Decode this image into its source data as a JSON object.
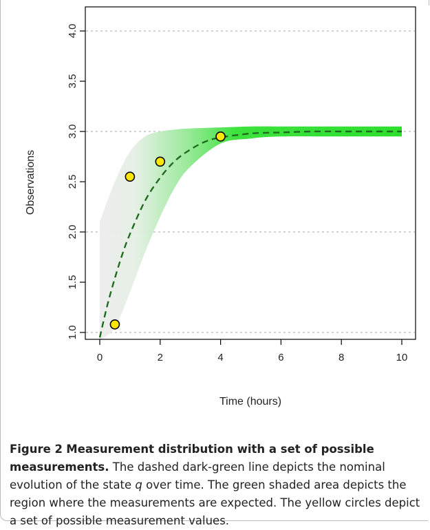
{
  "chart_data": {
    "type": "line",
    "xlabel": "Time (hours)",
    "ylabel": "Observations",
    "xlim": [
      0,
      10
    ],
    "ylim": [
      1.0,
      4.0
    ],
    "x_ticks": [
      "0",
      "2",
      "4",
      "6",
      "8",
      "10"
    ],
    "y_ticks": [
      "1.0",
      "1.5",
      "2.0",
      "2.5",
      "3.0",
      "3.5",
      "4.0"
    ],
    "grid": "horizontal dotted",
    "nominal_curve": {
      "style": "dashed dark-green",
      "color": "#1f6b1f",
      "x": [
        0,
        0.25,
        0.5,
        0.75,
        1,
        1.5,
        2,
        2.5,
        3,
        3.5,
        4,
        5,
        6,
        7,
        8,
        9,
        10
      ],
      "y": [
        0.95,
        1.27,
        1.54,
        1.78,
        1.98,
        2.31,
        2.54,
        2.71,
        2.82,
        2.9,
        2.94,
        2.98,
        2.99,
        3.0,
        3.0,
        3.0,
        3.0
      ]
    },
    "expected_region": {
      "color": "#22e022",
      "x": [
        0,
        0.5,
        1,
        1.5,
        2,
        2.5,
        3,
        4,
        5,
        6,
        8,
        10
      ],
      "lower": [
        0.92,
        1.05,
        1.4,
        1.8,
        2.15,
        2.45,
        2.65,
        2.88,
        2.93,
        2.95,
        2.95,
        2.95
      ],
      "upper": [
        2.1,
        2.5,
        2.8,
        2.95,
        3.0,
        3.02,
        3.03,
        3.04,
        3.05,
        3.05,
        3.05,
        3.05
      ]
    },
    "measurements": {
      "color": "#ffe600",
      "x": [
        0.5,
        1,
        2,
        4
      ],
      "y": [
        1.08,
        2.55,
        2.7,
        2.95
      ]
    }
  },
  "caption": {
    "label": "Figure 2",
    "title": "Measurement distribution with a set of possible measurements.",
    "text_before_var": "The dashed dark-green line depicts the nominal evolution of the state ",
    "variable": "q",
    "text_after_var": " over time. The green shaded area depicts the region where the measurements are expected. The yellow circles depict a set of possible measurement values."
  }
}
